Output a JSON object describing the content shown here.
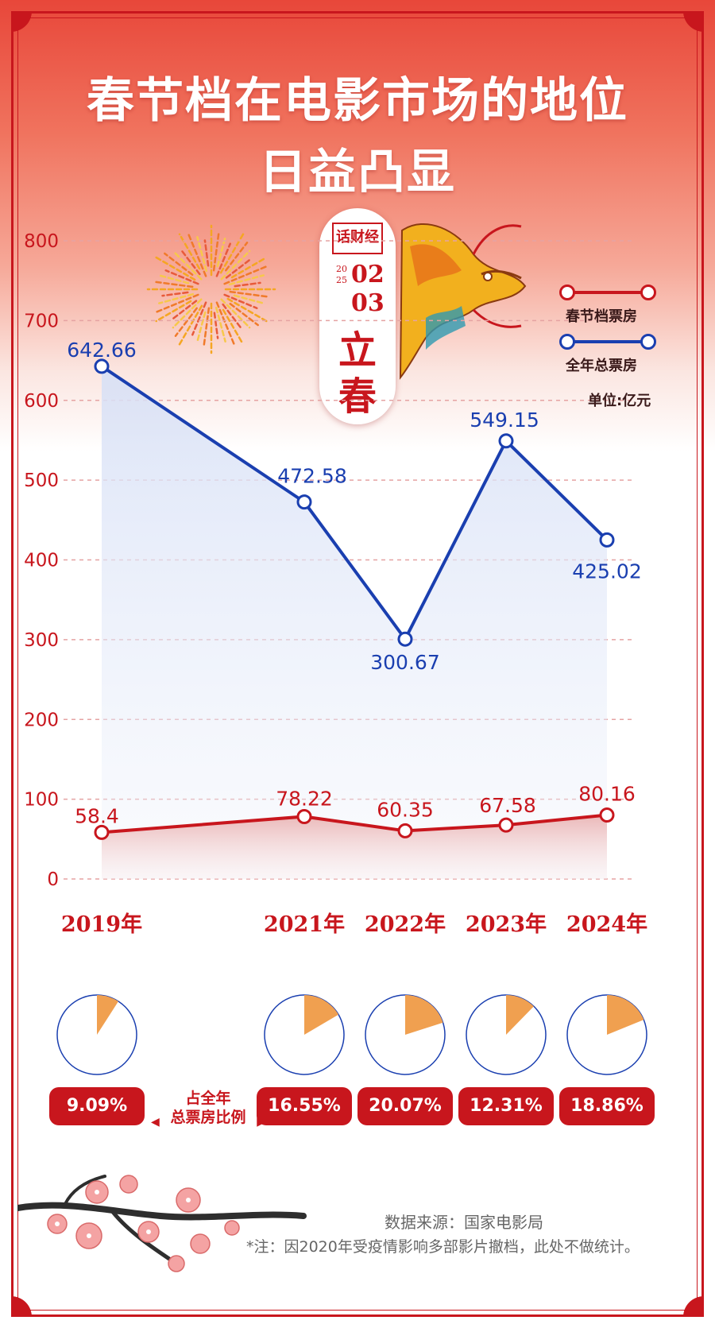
{
  "title": {
    "line1": "春节档在电影市场的地位",
    "line2": "日益凸显"
  },
  "badge": {
    "logo_text": "话财经",
    "year_top": "20",
    "year_bottom": "25",
    "month": "02",
    "day": "03",
    "term_line1": "立",
    "term_line2": "春"
  },
  "legend": {
    "spring": "春节档票房",
    "annual": "全年总票房"
  },
  "unit": "单位:亿元",
  "colors": {
    "spring": "#c8161d",
    "annual": "#1a3fb0",
    "pie_fill": "#f0a050"
  },
  "chart_data": {
    "type": "line",
    "categories": [
      "2019年",
      "2021年",
      "2022年",
      "2023年",
      "2024年"
    ],
    "ylim": [
      0,
      800
    ],
    "yticks": [
      "0",
      "100",
      "200",
      "300",
      "400",
      "500",
      "600",
      "700",
      "800"
    ],
    "grid": true,
    "legend_position": "top-right",
    "series": [
      {
        "name": "全年总票房",
        "values": [
          642.66,
          472.58,
          300.67,
          549.15,
          425.02
        ],
        "labels": [
          "642.66",
          "472.58",
          "300.67",
          "549.15",
          "425.02"
        ]
      },
      {
        "name": "春节档票房",
        "values": [
          58.4,
          78.22,
          60.35,
          67.58,
          80.16
        ],
        "labels": [
          "58.4",
          "78.22",
          "60.35",
          "67.58",
          "80.16"
        ]
      }
    ]
  },
  "share": {
    "label_line1": "占全年",
    "label_line2": "总票房比例",
    "values": [
      9.09,
      16.55,
      20.07,
      12.31,
      18.86
    ],
    "labels": [
      "9.09%",
      "16.55%",
      "20.07%",
      "12.31%",
      "18.86%"
    ]
  },
  "footer": {
    "source": "数据来源：国家电影局",
    "note": "*注：因2020年受疫情影响多部影片撤档，此处不做统计。"
  }
}
